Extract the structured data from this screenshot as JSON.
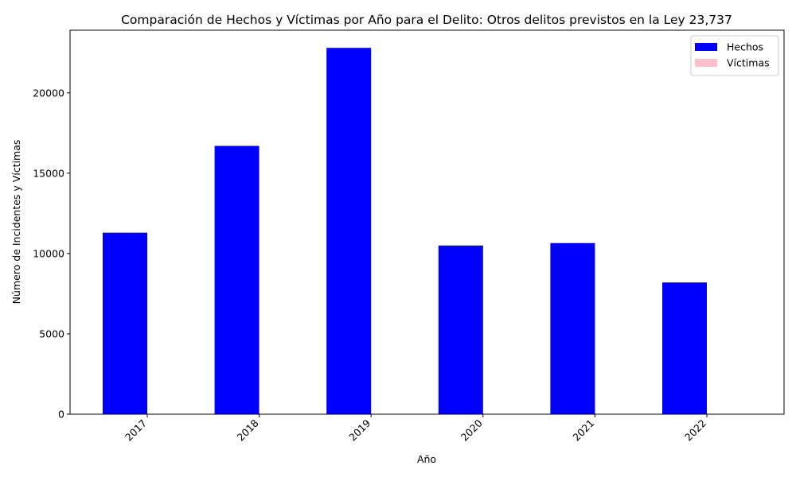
{
  "chart_data": {
    "type": "bar",
    "title": "Comparación de Hechos y Víctimas por Año para el Delito: Otros delitos previstos en la Ley 23,737",
    "xlabel": "Año",
    "ylabel": "Número de Incidentes y Víctimas",
    "categories": [
      "2017",
      "2018",
      "2019",
      "2020",
      "2021",
      "2022"
    ],
    "series": [
      {
        "name": "Hechos",
        "color": "#0000ff",
        "values": [
          11300,
          16700,
          22800,
          10500,
          10650,
          8200
        ]
      },
      {
        "name": "Víctimas",
        "color": "#ffc0cb",
        "values": [
          0,
          0,
          0,
          0,
          0,
          0
        ]
      }
    ],
    "yticks": [
      0,
      5000,
      10000,
      15000,
      20000
    ],
    "ylim": [
      0,
      23900
    ],
    "grid": false,
    "legend_position": "top-right",
    "xtick_rotation": 45
  }
}
